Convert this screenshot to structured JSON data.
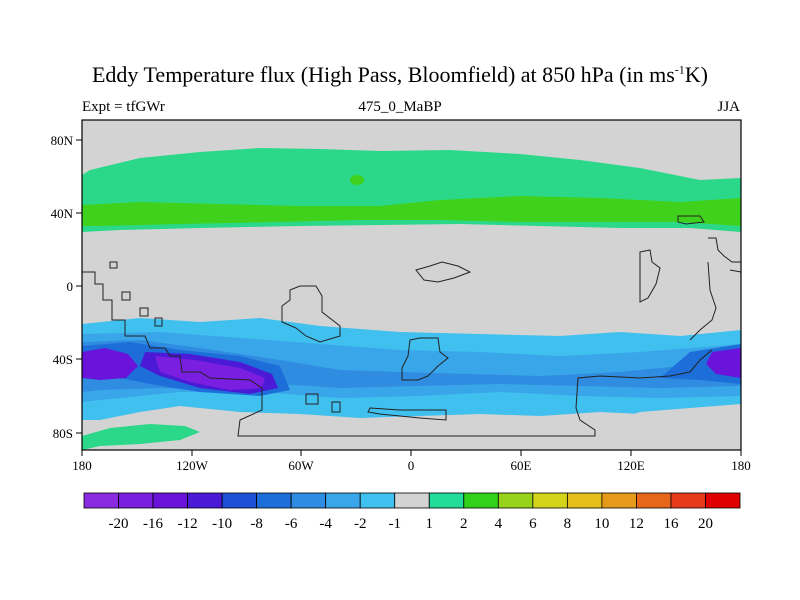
{
  "title": {
    "main": "Eddy Temperature flux (High Pass, Bloomfield) at 850 hPa (in ms",
    "sup": "-1",
    "tail": "K)"
  },
  "subtitle": {
    "left": "Expt = tfGWr",
    "center": "475_0_MaBP",
    "right": "JJA"
  },
  "axes": {
    "x_ticks": [
      "180",
      "120W",
      "60W",
      "0",
      "60E",
      "120E",
      "180"
    ],
    "y_ticks": [
      "80N",
      "40N",
      "0",
      "40S",
      "80S"
    ]
  },
  "colorbar": {
    "labels": [
      "-20",
      "-16",
      "-12",
      "-10",
      "-8",
      "-6",
      "-4",
      "-2",
      "-1",
      "1",
      "2",
      "4",
      "6",
      "8",
      "10",
      "12",
      "16",
      "20"
    ],
    "colors": [
      "#8a2be2",
      "#7a1fe0",
      "#6a14db",
      "#4a1ad6",
      "#1f4fd6",
      "#1e6ed9",
      "#2f8ce0",
      "#3aa6ea",
      "#3fc0ee",
      "#d3d3d3",
      "#22dd99",
      "#33d21a",
      "#99d21a",
      "#d4d41a",
      "#e6c01a",
      "#e69a1a",
      "#e6661a",
      "#e63a1a",
      "#e00000"
    ]
  },
  "chart_data": {
    "type": "heatmap",
    "x_range": [
      -180,
      180
    ],
    "y_range": [
      -90,
      90
    ],
    "field": "eddy temperature flux",
    "features": [
      {
        "region": "northern band 40N-75N",
        "level": "1 to 4",
        "color": "#2bd88a"
      },
      {
        "region": "core near 40N",
        "level": "2 to 4",
        "color": "#40d11c"
      },
      {
        "region": "tropics 30N-25S",
        "level": "-1 to 1",
        "color": "#d3d3d3"
      },
      {
        "region": "southern band 25S-75S",
        "level": "-2 to -8",
        "color": "#2f8ce0"
      },
      {
        "region": "core 40S-55S near 100W",
        "level": "-16 to -20",
        "color": "#7a1fe0"
      },
      {
        "region": "core 40S near 160W",
        "level": "-12 to -16",
        "color": "#6a14db"
      },
      {
        "region": "core 40S near 170E",
        "level": "-12",
        "color": "#6a14db"
      }
    ]
  }
}
